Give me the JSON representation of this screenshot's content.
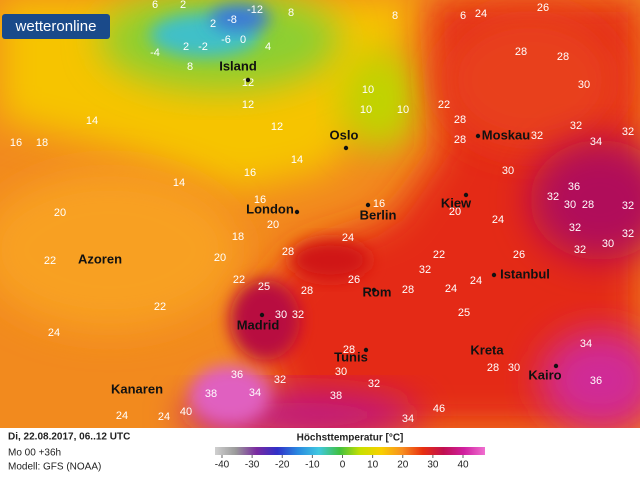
{
  "logo": "wetteronline",
  "cities": [
    "Island",
    "Oslo",
    "Moskau",
    "London",
    "Berlin",
    "Kiew",
    "Azoren",
    "Istanbul",
    "Madrid",
    "Rom",
    "Tunis",
    "Kreta",
    "Kairo",
    "Kanaren"
  ],
  "temperatures": [
    6,
    2,
    -12,
    -8,
    8,
    8,
    6,
    24,
    26,
    2,
    -4,
    2,
    -2,
    -6,
    0,
    4,
    8,
    12,
    12,
    10,
    22,
    28,
    28,
    28,
    30,
    16,
    18,
    14,
    14,
    14,
    10,
    10,
    28,
    32,
    32,
    34,
    32,
    12,
    16,
    16,
    16,
    20,
    30,
    36,
    32,
    30,
    28,
    32,
    20,
    18,
    20,
    24,
    24,
    32,
    30,
    32,
    22,
    20,
    28,
    22,
    26,
    32,
    24,
    22,
    25,
    28,
    26,
    32,
    28,
    24,
    22,
    30,
    32,
    25,
    24,
    34,
    28,
    28,
    30,
    30,
    36,
    32,
    32,
    36,
    38,
    34,
    38,
    40,
    24,
    24,
    34,
    46
  ],
  "footer": {
    "date": "Di, 22.08.2017, 06..12 UTC",
    "run": "Mo 00 +36h",
    "model": "Modell: GFS (NOAA)"
  },
  "legend": {
    "title": "Höchsttemperatur [°C]",
    "ticks": [
      -40,
      -30,
      -20,
      -10,
      0,
      10,
      20,
      30,
      40
    ],
    "colors": [
      "#d0d0d0",
      "#9a9a9a",
      "#7a2aa0",
      "#3030c8",
      "#2a8ae0",
      "#40c8e0",
      "#40c040",
      "#c8e000",
      "#f8d000",
      "#f89020",
      "#e83010",
      "#c01050",
      "#d020a0",
      "#f070d0"
    ]
  }
}
